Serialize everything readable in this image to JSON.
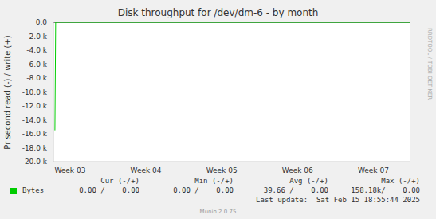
{
  "chart_data": {
    "type": "line",
    "title": "Disk throughput for /dev/dm-6 - by month",
    "y_label": "Pr second read (-) / write (+)",
    "side_text": "RRDTOOL / TOBI OETIKER",
    "x": [
      2.8,
      2.81,
      7.49
    ],
    "series": [
      {
        "name": "Bytes",
        "color": "#00cc00",
        "values": [
          -15500,
          0,
          0
        ]
      }
    ],
    "xlim": [
      2.78,
      7.49
    ],
    "xticks": [
      {
        "value": 3,
        "label": "Week 03"
      },
      {
        "value": 4,
        "label": "Week 04"
      },
      {
        "value": 5,
        "label": "Week 05"
      },
      {
        "value": 6,
        "label": "Week 06"
      },
      {
        "value": 7,
        "label": "Week 07"
      }
    ],
    "ylim": [
      -20000,
      0
    ],
    "yticks": [
      {
        "value": 0,
        "label": "0.0"
      },
      {
        "value": -2000,
        "label": "-2.0 k"
      },
      {
        "value": -4000,
        "label": "-4.0 k"
      },
      {
        "value": -6000,
        "label": "-6.0 k"
      },
      {
        "value": -8000,
        "label": "-8.0 k"
      },
      {
        "value": -10000,
        "label": "-10.0 k"
      },
      {
        "value": -12000,
        "label": "-12.0 k"
      },
      {
        "value": -14000,
        "label": "-14.0 k"
      },
      {
        "value": -16000,
        "label": "-16.0 k"
      },
      {
        "value": -18000,
        "label": "-18.0 k"
      },
      {
        "value": -20000,
        "label": "-20.0 k"
      }
    ],
    "grid": false,
    "legend_table": {
      "headers": [
        "Cur (-/+)",
        "Min (-/+)",
        "Avg (-/+)",
        "Max (-/+)"
      ],
      "rows": [
        {
          "name": "Bytes",
          "color": "#00cc00",
          "cells": [
            "0.00 /    0.00",
            "0.00 /    0.00",
            "39.66 /    0.00",
            "158.18k/    0.00"
          ]
        }
      ]
    },
    "last_update": "Last update:  Sat Feb 15 18:55:44 2025",
    "footer": "Munin 2.0.75"
  }
}
